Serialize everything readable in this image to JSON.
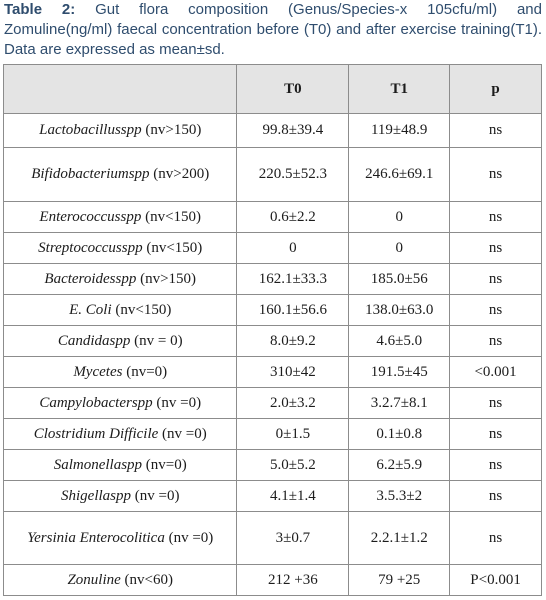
{
  "caption": {
    "label": "Table 2:",
    "text": " Gut flora composition (Genus/Species-x 105cfu/ml) and Zomuline(ng/ml) faecal concentration before (T0) and after exercise training(T1). Data are expressed as mean±sd."
  },
  "table": {
    "headers": [
      "",
      "T0",
      "T1",
      "p"
    ],
    "rows": [
      {
        "name": "Lactobacillusspp",
        "range": " (nv>150)",
        "t0": "99.8±39.4",
        "t1": "119±48.9",
        "p": "ns"
      },
      {
        "name": "Bifidobacteriumspp",
        "range": " (nv>200)",
        "t0": "220.5±52.3",
        "t1": "246.6±69.1",
        "p": "ns"
      },
      {
        "name": "Enterococcusspp",
        "range": " (nv<150)",
        "t0": "0.6±2.2",
        "t1": "0",
        "p": "ns"
      },
      {
        "name": "Streptococcusspp",
        "range": " (nv<150)",
        "t0": "0",
        "t1": "0",
        "p": "ns"
      },
      {
        "name": "Bacteroidesspp",
        "range": " (nv>150)",
        "t0": "162.1±33.3",
        "t1": "185.0±56",
        "p": "ns"
      },
      {
        "name": "E. Coli",
        "range": " (nv<150)",
        "t0": "160.1±56.6",
        "t1": "138.0±63.0",
        "p": "ns"
      },
      {
        "name": "Candidaspp",
        "range": " (nv = 0)",
        "t0": "8.0±9.2",
        "t1": "4.6±5.0",
        "p": "ns"
      },
      {
        "name": "Mycetes",
        "range": " (nv=0)",
        "t0": "310±42",
        "t1": "191.5±45",
        "p": "<0.001"
      },
      {
        "name": "Campylobacterspp",
        "range": " (nv =0)",
        "t0": "2.0±3.2",
        "t1": "3.2.7±8.1",
        "p": "ns"
      },
      {
        "name": "Clostridium Difficile",
        "range": " (nv =0)",
        "t0": "0±1.5",
        "t1": "0.1±0.8",
        "p": "ns"
      },
      {
        "name": "Salmonellaspp",
        "range": " (nv=0)",
        "t0": "5.0±5.2",
        "t1": "6.2±5.9",
        "p": "ns"
      },
      {
        "name": "Shigellaspp",
        "range": " (nv =0)",
        "t0": "4.1±1.4",
        "t1": "3.5.3±2",
        "p": "ns"
      },
      {
        "name": "Yersinia Enterocolitica",
        "range": " (nv =0)",
        "t0": "3±0.7",
        "t1": "2.2.1±1.2",
        "p": "ns"
      },
      {
        "name": "Zonuline",
        "range": " (nv<60)",
        "t0": "212 +36",
        "t1": "79 +25",
        "p": "P<0.001"
      }
    ]
  }
}
